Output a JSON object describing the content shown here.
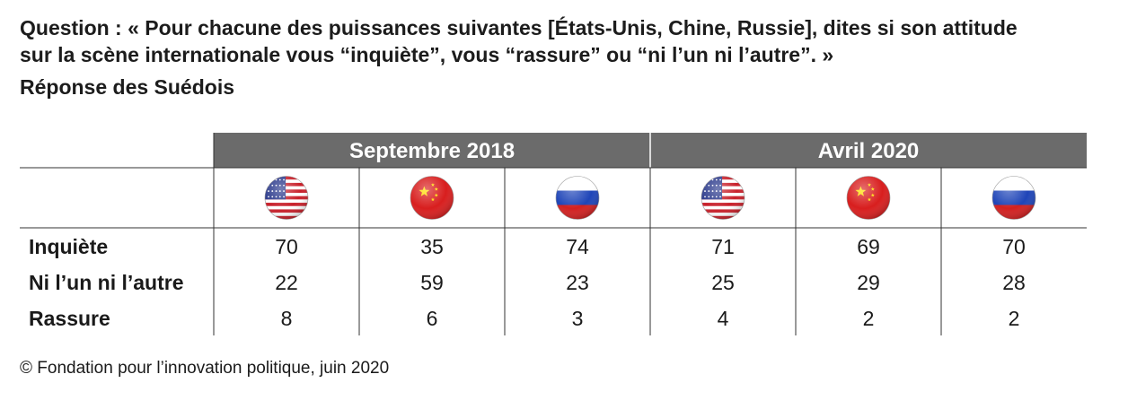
{
  "question": {
    "line1": "Question : « Pour chacune des puissances suivantes [États-Unis, Chine, Russie], dites si son attitude",
    "line2": "sur la scène internationale vous “inquiète”, vous “rassure” ou “ni l’un ni l’autre”. »"
  },
  "subtitle": "Réponse des Suédois",
  "colors": {
    "header_bg": "#6b6b6b",
    "header_text": "#ffffff",
    "grid": "#333333",
    "us_blue": "#2b3a8c",
    "us_red": "#c8202a",
    "cn_red": "#d81e1e",
    "cn_star": "#ffde00",
    "ru_white": "#ffffff",
    "ru_blue": "#1f45b8",
    "ru_red": "#d22020"
  },
  "chart_data": {
    "type": "table",
    "periods": [
      "Septembre 2018",
      "Avril 2020"
    ],
    "columns": [
      {
        "period": "Septembre 2018",
        "flag": "us-flag-icon"
      },
      {
        "period": "Septembre 2018",
        "flag": "china-flag-icon"
      },
      {
        "period": "Septembre 2018",
        "flag": "russia-flag-icon"
      },
      {
        "period": "Avril 2020",
        "flag": "us-flag-icon"
      },
      {
        "period": "Avril 2020",
        "flag": "china-flag-icon"
      },
      {
        "period": "Avril 2020",
        "flag": "russia-flag-icon"
      }
    ],
    "rows": [
      {
        "label": "Inquiète",
        "values": [
          70,
          35,
          74,
          71,
          69,
          70
        ]
      },
      {
        "label": "Ni l’un ni l’autre",
        "values": [
          22,
          59,
          23,
          25,
          29,
          28
        ]
      },
      {
        "label": "Rassure",
        "values": [
          8,
          6,
          3,
          4,
          2,
          2
        ]
      }
    ]
  },
  "source": "© Fondation pour l’innovation politique, juin 2020"
}
